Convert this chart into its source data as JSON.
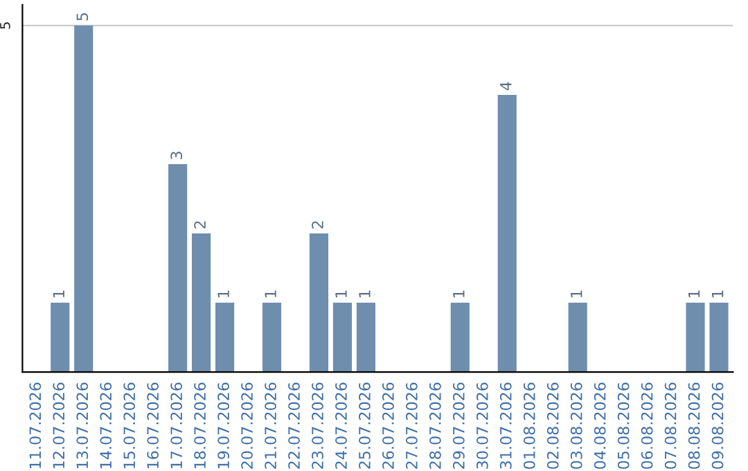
{
  "chart_data": {
    "type": "bar",
    "categories": [
      "11.07.2026",
      "12.07.2026",
      "13.07.2026",
      "14.07.2026",
      "15.07.2026",
      "16.07.2026",
      "17.07.2026",
      "18.07.2026",
      "19.07.2026",
      "20.07.2026",
      "21.07.2026",
      "22.07.2026",
      "23.07.2026",
      "24.07.2026",
      "25.07.2026",
      "26.07.2026",
      "27.07.2026",
      "28.07.2026",
      "29.07.2026",
      "30.07.2026",
      "31.07.2026",
      "01.08.2026",
      "02.08.2026",
      "03.08.2026",
      "04.08.2026",
      "05.08.2026",
      "06.08.2026",
      "07.08.2026",
      "08.08.2026",
      "09.08.2026"
    ],
    "values": [
      0,
      1,
      5,
      0,
      0,
      0,
      3,
      2,
      1,
      0,
      1,
      0,
      2,
      1,
      1,
      0,
      0,
      0,
      1,
      0,
      4,
      0,
      0,
      1,
      0,
      0,
      0,
      0,
      1,
      1
    ],
    "value_labels": [
      null,
      "1",
      "5",
      null,
      null,
      null,
      "3",
      "2",
      "1",
      null,
      "1",
      null,
      "2",
      "1",
      "1",
      null,
      null,
      null,
      "1",
      null,
      "4",
      null,
      null,
      "1",
      null,
      null,
      null,
      null,
      "1",
      "1"
    ],
    "color": "#6f8eae",
    "ylim": [
      0,
      5.3
    ],
    "yticks": [
      5
    ],
    "grid": "y",
    "legend": false
  }
}
